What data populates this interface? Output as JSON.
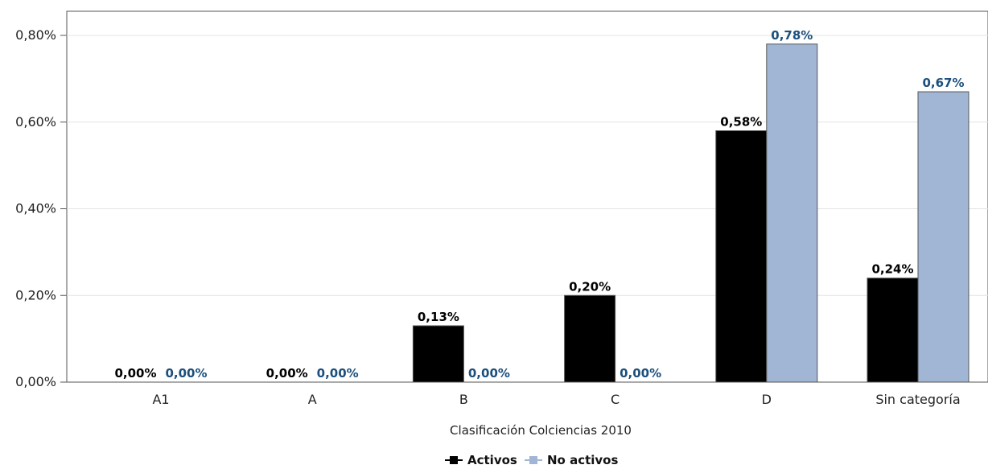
{
  "chart_data": {
    "type": "bar",
    "title": "",
    "xlabel": "Clasificación Colciencias 2010",
    "ylabel": "",
    "categories": [
      "A1",
      "A",
      "B",
      "C",
      "D",
      "Sin categoría"
    ],
    "ylim": [
      0,
      0.8
    ],
    "yticks": [
      0,
      0.2,
      0.4,
      0.6,
      0.8
    ],
    "ytick_labels": [
      "0,00%",
      "0,20%",
      "0,40%",
      "0,60%",
      "0,80%"
    ],
    "grid": true,
    "legend_position": "bottom-center",
    "series": [
      {
        "name": "Activos",
        "color": "#000000",
        "label_color": "#000000",
        "values": [
          0.0,
          0.0,
          0.13,
          0.2,
          0.58,
          0.24
        ],
        "labels": [
          "0,00%",
          "0,00%",
          "0,13%",
          "0,20%",
          "0,58%",
          "0,24%"
        ]
      },
      {
        "name": "No activos",
        "color": "#a1b5d4",
        "label_color": "#1c4f7c",
        "values": [
          0.0,
          0.0,
          0.0,
          0.0,
          0.78,
          0.67
        ],
        "labels": [
          "0,00%",
          "0,00%",
          "0,00%",
          "0,00%",
          "0,78%",
          "0,67%"
        ]
      }
    ]
  }
}
